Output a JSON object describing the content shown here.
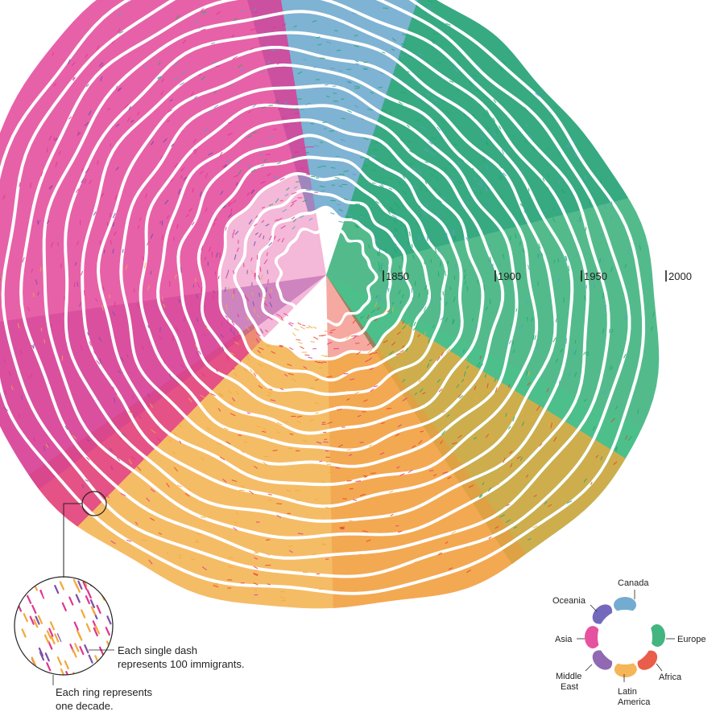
{
  "chart_data": {
    "type": "other",
    "description_type": "tree-ring radial dash chart",
    "ring_years": [
      "1850",
      "1900",
      "1950",
      "2000"
    ],
    "ring_count": 17,
    "regions": [
      {
        "name": "Canada",
        "color": "#5bb8d8"
      },
      {
        "name": "Europe",
        "color": "#2fb37a"
      },
      {
        "name": "Africa",
        "color": "#e8412c"
      },
      {
        "name": "Latin America",
        "color": "#f2a93b"
      },
      {
        "name": "Middle East",
        "color": "#7e4fa6"
      },
      {
        "name": "Asia",
        "color": "#e23f93"
      },
      {
        "name": "Oceania",
        "color": "#5a4fb0"
      }
    ],
    "annotations": {
      "dash": [
        "Each single dash",
        "represents 100 immigrants."
      ],
      "ring": [
        "Each ring represents",
        "one decade."
      ]
    }
  },
  "legend": {
    "canada": "Canada",
    "europe": "Europe",
    "africa": "Africa",
    "latin_america": [
      "Latin",
      "America"
    ],
    "middle_east": [
      "Middle",
      "East"
    ],
    "asia": "Asia",
    "oceania": "Oceania"
  },
  "colors": {
    "europe": "#22a86a",
    "europe_light": "#4cc08c",
    "canada": "#5a9ec8",
    "asia": "#e0358f",
    "latin_america": "#f2a93b",
    "africa": "#e8412c",
    "middle_east": "#7e4fa6",
    "oceania": "#5a4fb0",
    "ring_gap": "#ffffff"
  }
}
